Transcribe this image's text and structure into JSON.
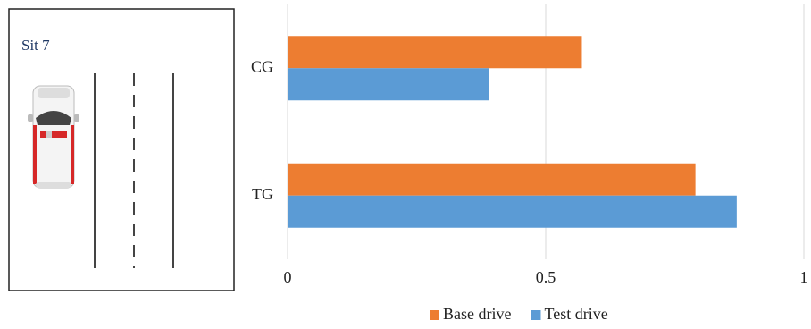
{
  "diagram": {
    "label": "Sit 7"
  },
  "chart_data": {
    "type": "hbar",
    "categories": [
      "CG",
      "TG"
    ],
    "series": [
      {
        "name": "Base drive",
        "color": "#ed7d31",
        "values": [
          0.57,
          0.79
        ]
      },
      {
        "name": "Test drive",
        "color": "#5b9bd5",
        "values": [
          0.39,
          0.87
        ]
      }
    ],
    "xlim": [
      0,
      1
    ],
    "xticks": [
      0,
      0.5,
      1
    ],
    "grid": true,
    "legend": "bottom"
  }
}
